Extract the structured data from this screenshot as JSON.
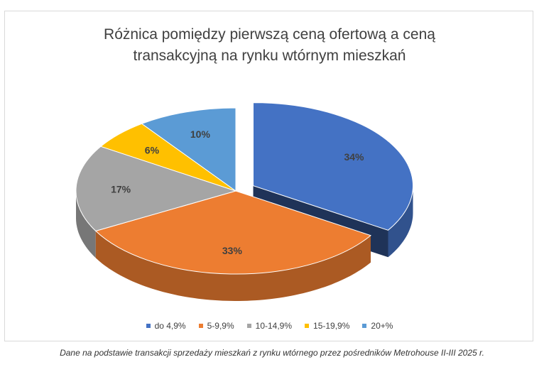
{
  "chart_data": {
    "type": "pie",
    "title_lines": [
      "Różnica pomiędzy pierwszą ceną ofertową a ceną",
      "transakcyjną na rynku wtórnym mieszkań"
    ],
    "categories": [
      "do 4,9%",
      "5-9,9%",
      "10-14,9%",
      "15-19,9%",
      "20+%"
    ],
    "values": [
      34,
      33,
      17,
      6,
      10
    ],
    "labels": [
      "34%",
      "33%",
      "17%",
      "6%",
      "10%"
    ],
    "colors": [
      "#4472C4",
      "#ED7D31",
      "#A5A5A5",
      "#FFC000",
      "#5B9BD5"
    ],
    "exploded": "do 4,9%",
    "legend_position": "bottom",
    "style": "3d"
  },
  "caption": "Dane na podstawie transakcji sprzedaży mieszkań z rynku wtórnego przez pośredników Metrohouse II-III 2025 r."
}
